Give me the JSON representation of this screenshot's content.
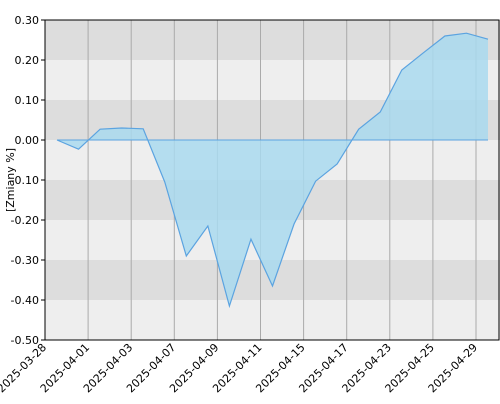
{
  "chart_data": {
    "type": "area",
    "y_label": "[Zmiany %]",
    "categories": [
      "2025-03-28",
      null,
      "2025-04-01",
      null,
      "2025-04-03",
      null,
      "2025-04-07",
      null,
      "2025-04-09",
      null,
      "2025-04-11",
      null,
      "2025-04-15",
      null,
      "2025-04-17",
      null,
      "2025-04-23",
      null,
      "2025-04-25",
      null,
      "2025-04-29"
    ],
    "values": [
      0.0,
      -0.023,
      0.027,
      0.03,
      0.028,
      -0.105,
      -0.29,
      -0.215,
      -0.415,
      -0.248,
      -0.365,
      -0.21,
      -0.103,
      -0.06,
      0.027,
      0.07,
      0.175,
      0.218,
      0.26,
      0.267,
      0.252
    ],
    "color": "#5ba3e0",
    "fill": "#a9d9ee",
    "ylim": [
      -0.5,
      0.3
    ],
    "yticks": [
      {
        "value": -0.5,
        "label": "-0.50"
      },
      {
        "value": -0.4,
        "label": "-0.40"
      },
      {
        "value": -0.3,
        "label": "-0.30"
      },
      {
        "value": -0.2,
        "label": "-0.20"
      },
      {
        "value": -0.1,
        "label": "-0.10"
      },
      {
        "value": 0,
        "label": "0.00"
      },
      {
        "value": 0.1,
        "label": "0.10"
      },
      {
        "value": 0.2,
        "label": "0.20"
      },
      {
        "value": 0.3,
        "label": "0.30"
      }
    ],
    "grid": true
  }
}
